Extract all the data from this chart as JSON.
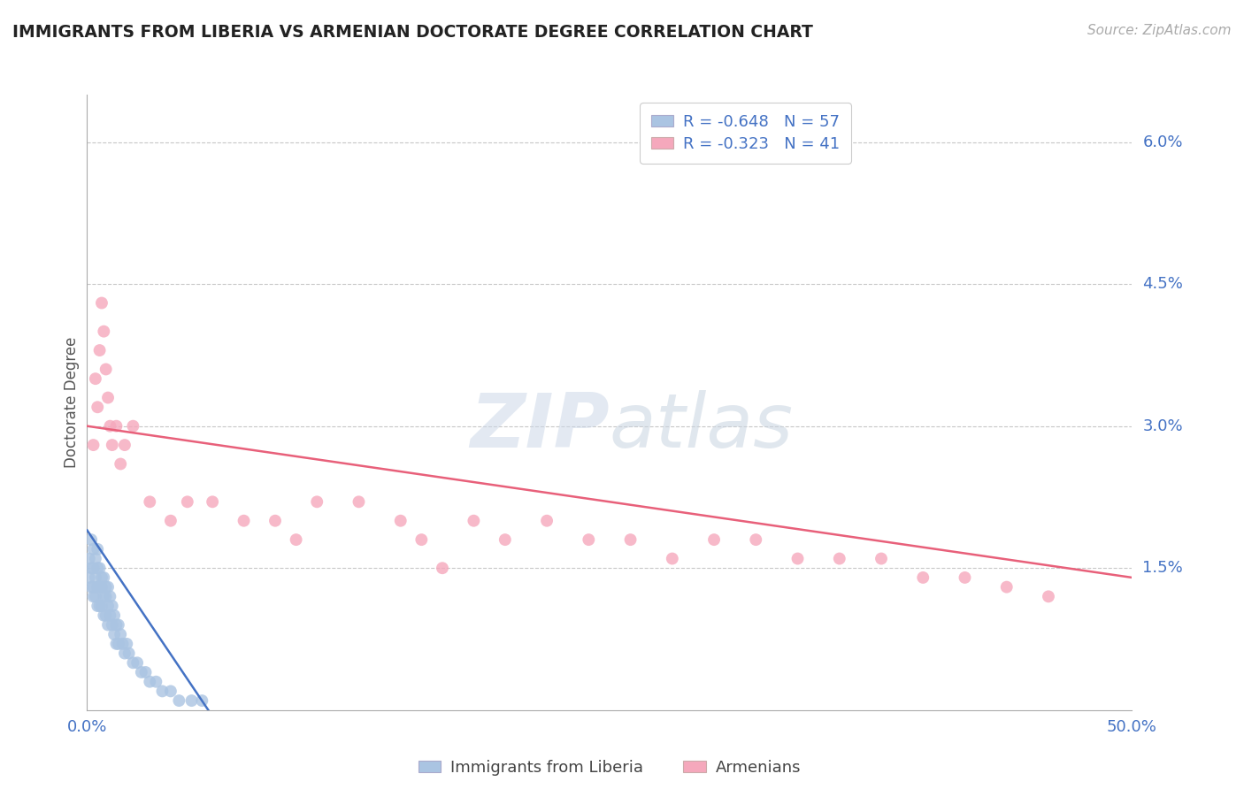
{
  "title": "IMMIGRANTS FROM LIBERIA VS ARMENIAN DOCTORATE DEGREE CORRELATION CHART",
  "source": "Source: ZipAtlas.com",
  "ylabel": "Doctorate Degree",
  "xlim": [
    0.0,
    0.5
  ],
  "ylim": [
    0.0,
    0.065
  ],
  "yticks": [
    0.0,
    0.015,
    0.03,
    0.045,
    0.06
  ],
  "ytick_labels": [
    "",
    "1.5%",
    "3.0%",
    "4.5%",
    "6.0%"
  ],
  "xticks": [
    0.0,
    0.125,
    0.25,
    0.375,
    0.5
  ],
  "xtick_labels": [
    "0.0%",
    "",
    "",
    "",
    "50.0%"
  ],
  "legend_line1": "R = -0.648   N = 57",
  "legend_line2": "R = -0.323   N = 41",
  "blue_color": "#aac4e2",
  "pink_color": "#f5a8bc",
  "blue_line_color": "#4472c4",
  "pink_line_color": "#e8607a",
  "blue_scatter_x": [
    0.001,
    0.001,
    0.002,
    0.002,
    0.002,
    0.003,
    0.003,
    0.003,
    0.003,
    0.004,
    0.004,
    0.004,
    0.005,
    0.005,
    0.005,
    0.005,
    0.006,
    0.006,
    0.006,
    0.007,
    0.007,
    0.007,
    0.008,
    0.008,
    0.008,
    0.009,
    0.009,
    0.009,
    0.01,
    0.01,
    0.01,
    0.011,
    0.011,
    0.012,
    0.012,
    0.013,
    0.013,
    0.014,
    0.014,
    0.015,
    0.015,
    0.016,
    0.017,
    0.018,
    0.019,
    0.02,
    0.022,
    0.024,
    0.026,
    0.028,
    0.03,
    0.033,
    0.036,
    0.04,
    0.044,
    0.05,
    0.055
  ],
  "blue_scatter_y": [
    0.016,
    0.014,
    0.018,
    0.015,
    0.013,
    0.017,
    0.015,
    0.013,
    0.012,
    0.016,
    0.014,
    0.012,
    0.017,
    0.015,
    0.013,
    0.011,
    0.015,
    0.013,
    0.011,
    0.014,
    0.013,
    0.011,
    0.014,
    0.012,
    0.01,
    0.013,
    0.012,
    0.01,
    0.013,
    0.011,
    0.009,
    0.012,
    0.01,
    0.011,
    0.009,
    0.01,
    0.008,
    0.009,
    0.007,
    0.009,
    0.007,
    0.008,
    0.007,
    0.006,
    0.007,
    0.006,
    0.005,
    0.005,
    0.004,
    0.004,
    0.003,
    0.003,
    0.002,
    0.002,
    0.001,
    0.001,
    0.001
  ],
  "blue_trend_x": [
    0.0,
    0.058
  ],
  "blue_trend_y": [
    0.019,
    0.0
  ],
  "pink_scatter_x": [
    0.003,
    0.004,
    0.005,
    0.006,
    0.007,
    0.008,
    0.009,
    0.01,
    0.011,
    0.012,
    0.014,
    0.016,
    0.018,
    0.022,
    0.03,
    0.04,
    0.048,
    0.06,
    0.075,
    0.09,
    0.1,
    0.11,
    0.13,
    0.15,
    0.16,
    0.17,
    0.185,
    0.2,
    0.22,
    0.24,
    0.26,
    0.28,
    0.3,
    0.32,
    0.34,
    0.36,
    0.38,
    0.4,
    0.42,
    0.44,
    0.46
  ],
  "pink_scatter_y": [
    0.028,
    0.035,
    0.032,
    0.038,
    0.043,
    0.04,
    0.036,
    0.033,
    0.03,
    0.028,
    0.03,
    0.026,
    0.028,
    0.03,
    0.022,
    0.02,
    0.022,
    0.022,
    0.02,
    0.02,
    0.018,
    0.022,
    0.022,
    0.02,
    0.018,
    0.015,
    0.02,
    0.018,
    0.02,
    0.018,
    0.018,
    0.016,
    0.018,
    0.018,
    0.016,
    0.016,
    0.016,
    0.014,
    0.014,
    0.013,
    0.012
  ],
  "pink_trend_x": [
    0.0,
    0.5
  ],
  "pink_trend_y": [
    0.03,
    0.014
  ]
}
